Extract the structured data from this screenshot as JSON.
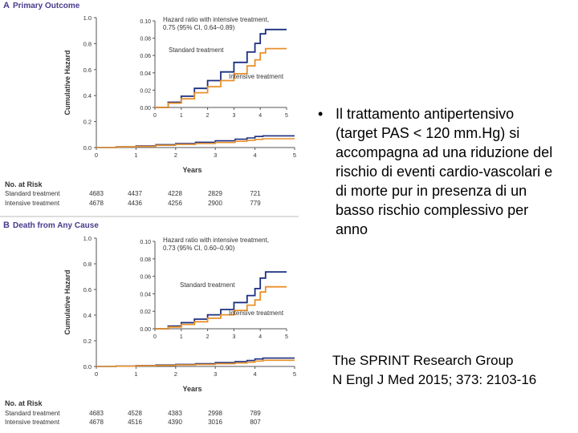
{
  "slide": {
    "bullet_text": "Il trattamento antipertensivo (target PAS < 120 mm.Hg) si accompagna ad una riduzione del rischio di eventi cardio-vascolari e di morte pur in presenza di un basso rischio complessivo per anno",
    "citation_line1": "The SPRINT Research Group",
    "citation_line2": "N Engl J Med 2015; 373: 2103-16"
  },
  "colors": {
    "standard": "#1c2f80",
    "intensive": "#e8902a",
    "panel_label": "#4a3a8c",
    "axis": "#555555"
  },
  "chart_data": [
    {
      "type": "line",
      "panel_letter": "A",
      "title": "Primary Outcome",
      "xlabel": "Years",
      "ylabel": "Cumulative Hazard",
      "xlim": [
        0,
        5
      ],
      "ylim": [
        0,
        1.0
      ],
      "x_ticks": [
        "0",
        "1",
        "2",
        "3",
        "4",
        "5"
      ],
      "y_ticks": [
        "0.0",
        "0.2",
        "0.4",
        "0.6",
        "0.8",
        "1.0"
      ],
      "series": [
        {
          "name": "Standard treatment",
          "x": [
            0,
            0.5,
            1,
            1.5,
            2,
            2.5,
            3,
            3.5,
            3.8,
            4.0,
            4.2,
            4.5,
            5.0
          ],
          "values": [
            0,
            0.006,
            0.013,
            0.022,
            0.031,
            0.041,
            0.052,
            0.064,
            0.074,
            0.085,
            0.09,
            0.09,
            0.09
          ]
        },
        {
          "name": "Intensive treatment",
          "x": [
            0,
            0.5,
            1,
            1.5,
            2,
            2.5,
            3,
            3.5,
            3.8,
            4.0,
            4.2,
            4.5,
            5.0
          ],
          "values": [
            0,
            0.005,
            0.01,
            0.017,
            0.024,
            0.031,
            0.039,
            0.048,
            0.055,
            0.063,
            0.068,
            0.068,
            0.068
          ]
        }
      ],
      "inset": {
        "xlim": [
          0,
          5
        ],
        "ylim": [
          0,
          0.1
        ],
        "x_ticks": [
          "0",
          "1",
          "2",
          "3",
          "4",
          "5"
        ],
        "y_ticks": [
          "0.00",
          "0.02",
          "0.04",
          "0.06",
          "0.08",
          "0.10"
        ],
        "annotation_line1": "Hazard ratio with intensive treatment,",
        "annotation_line2": "0.75 (95% CI, 0.64–0.89)",
        "standard_label": "Standard treatment",
        "intensive_label": "Intensive treatment"
      },
      "risk_table": {
        "header": "No. at Risk",
        "rows": [
          {
            "label": "Standard treatment",
            "values": [
              "4683",
              "4437",
              "4228",
              "2829",
              "721"
            ]
          },
          {
            "label": "Intensive treatment",
            "values": [
              "4678",
              "4436",
              "4256",
              "2900",
              "779"
            ]
          }
        ]
      }
    },
    {
      "type": "line",
      "panel_letter": "B",
      "title": "Death from Any Cause",
      "xlabel": "Years",
      "ylabel": "Cumulative Hazard",
      "xlim": [
        0,
        5
      ],
      "ylim": [
        0,
        1.0
      ],
      "x_ticks": [
        "0",
        "1",
        "2",
        "3",
        "4",
        "5"
      ],
      "y_ticks": [
        "0.0",
        "0.2",
        "0.4",
        "0.6",
        "0.8",
        "1.0"
      ],
      "series": [
        {
          "name": "Standard treatment",
          "x": [
            0,
            0.5,
            1,
            1.5,
            2,
            2.5,
            3,
            3.5,
            3.8,
            4.0,
            4.2,
            4.5,
            5.0
          ],
          "values": [
            0,
            0.003,
            0.007,
            0.011,
            0.016,
            0.022,
            0.03,
            0.038,
            0.046,
            0.058,
            0.065,
            0.065,
            0.065
          ]
        },
        {
          "name": "Intensive treatment",
          "x": [
            0,
            0.5,
            1,
            1.5,
            2,
            2.5,
            3,
            3.5,
            3.8,
            4.0,
            4.2,
            4.5,
            5.0
          ],
          "values": [
            0,
            0.002,
            0.005,
            0.008,
            0.012,
            0.016,
            0.021,
            0.027,
            0.033,
            0.042,
            0.048,
            0.048,
            0.048
          ]
        }
      ],
      "inset": {
        "xlim": [
          0,
          5
        ],
        "ylim": [
          0,
          0.1
        ],
        "x_ticks": [
          "0",
          "1",
          "2",
          "3",
          "4",
          "5"
        ],
        "y_ticks": [
          "0.00",
          "0.02",
          "0.04",
          "0.06",
          "0.08",
          "0.10"
        ],
        "annotation_line1": "Hazard ratio with intensive treatment,",
        "annotation_line2": "0.73 (95% CI, 0.60–0.90)",
        "standard_label": "Standard treatment",
        "intensive_label": "Intensive treatment"
      },
      "risk_table": {
        "header": "No. at Risk",
        "rows": [
          {
            "label": "Standard treatment",
            "values": [
              "4683",
              "4528",
              "4383",
              "2998",
              "789"
            ]
          },
          {
            "label": "Intensive treatment",
            "values": [
              "4678",
              "4516",
              "4390",
              "3016",
              "807"
            ]
          }
        ]
      }
    }
  ]
}
